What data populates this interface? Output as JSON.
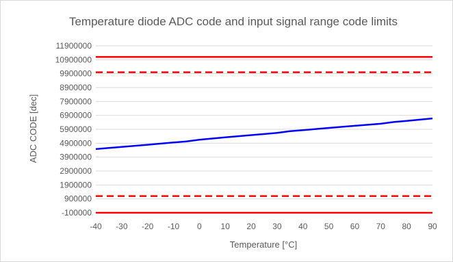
{
  "chart_data": {
    "type": "line",
    "title": "Temperature diode ADC code and input signal range code limits",
    "xlabel": "Temperature [°C]",
    "ylabel": "ADC CODE [dec]",
    "xlim": [
      -40,
      90
    ],
    "ylim": [
      -100000,
      11900000
    ],
    "x_ticks": [
      -40,
      -30,
      -20,
      -10,
      0,
      10,
      20,
      30,
      40,
      50,
      60,
      70,
      80,
      90
    ],
    "y_ticks": [
      -100000,
      900000,
      1900000,
      2900000,
      3900000,
      4900000,
      5900000,
      6900000,
      7900000,
      8900000,
      9900000,
      10900000,
      11900000
    ],
    "grid": true,
    "legend": "none",
    "series": [
      {
        "color": "#0000ff",
        "style": "solid",
        "x": [
          -40,
          -30,
          -20,
          -10,
          -5,
          0,
          10,
          20,
          30,
          35,
          40,
          50,
          60,
          70,
          75,
          80,
          90
        ],
        "y": [
          4480000,
          4630000,
          4790000,
          4950000,
          5030000,
          5150000,
          5320000,
          5480000,
          5640000,
          5760000,
          5840000,
          6000000,
          6150000,
          6300000,
          6420000,
          6500000,
          6680000
        ]
      },
      {
        "color": "#ff0000",
        "style": "solid",
        "x": [
          -40,
          90
        ],
        "y": [
          11100000,
          11100000
        ]
      },
      {
        "color": "#ff0000",
        "style": "dashed",
        "x": [
          -40,
          90
        ],
        "y": [
          10000000,
          10000000
        ]
      },
      {
        "color": "#ff0000",
        "style": "dashed",
        "x": [
          -40,
          90
        ],
        "y": [
          1100000,
          1100000
        ]
      },
      {
        "color": "#ff0000",
        "style": "solid",
        "x": [
          -40,
          90
        ],
        "y": [
          -100000,
          -100000
        ]
      }
    ]
  }
}
